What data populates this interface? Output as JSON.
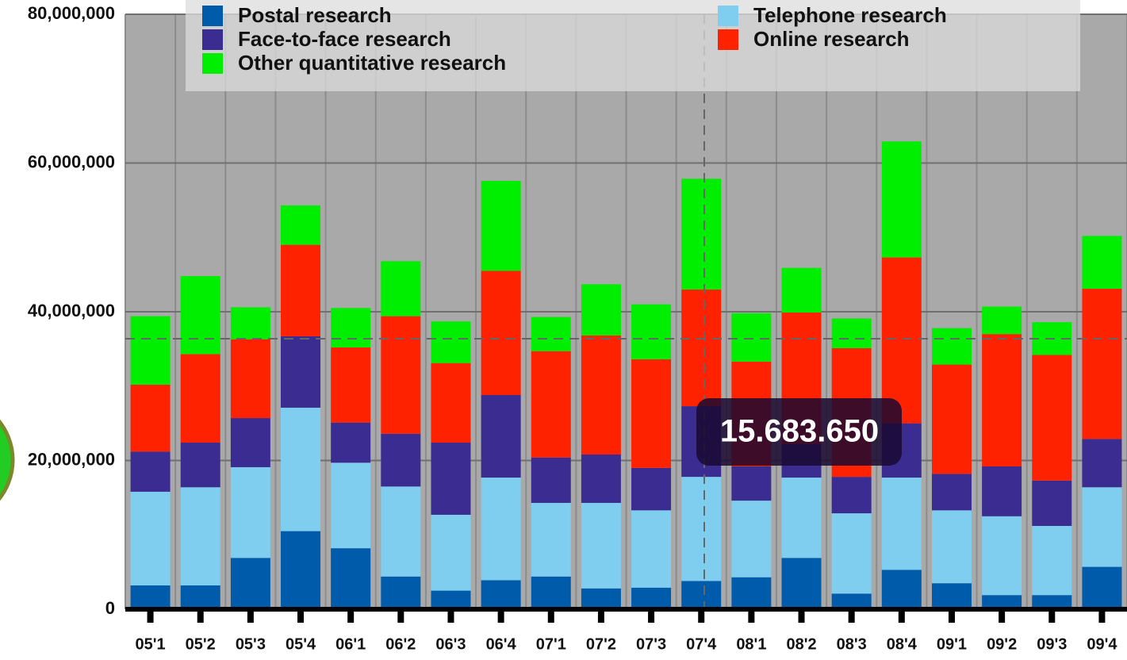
{
  "chart_data": {
    "type": "stacked_bar",
    "categories": [
      "05'1",
      "05'2",
      "05'3",
      "05'4",
      "06'1",
      "06'2",
      "06'3",
      "06'4",
      "07'1",
      "07'2",
      "07'3",
      "07'4",
      "08'1",
      "08'2",
      "08'3",
      "08'4",
      "09'1",
      "09'2",
      "09'3",
      "09'4"
    ],
    "series": [
      {
        "name": "Postal research",
        "color": "#005bab",
        "values": [
          3200000,
          3200000,
          6900000,
          10500000,
          8200000,
          4400000,
          2500000,
          3900000,
          4400000,
          2800000,
          2900000,
          3800000,
          4300000,
          6900000,
          2100000,
          5300000,
          3500000,
          1900000,
          1900000,
          5700000
        ]
      },
      {
        "name": "Telephone research",
        "color": "#7fcdef",
        "values": [
          12600000,
          13200000,
          12200000,
          16600000,
          11500000,
          12100000,
          10200000,
          13800000,
          9900000,
          11500000,
          10400000,
          14000000,
          10300000,
          10800000,
          10800000,
          12400000,
          9800000,
          10600000,
          9300000,
          10700000
        ]
      },
      {
        "name": "Face-to-face research",
        "color": "#3b2c91",
        "values": [
          5400000,
          6000000,
          6600000,
          9600000,
          5400000,
          7100000,
          9700000,
          11100000,
          6100000,
          6500000,
          5700000,
          9500000,
          4600000,
          4500000,
          4900000,
          7300000,
          4900000,
          6700000,
          6100000,
          6500000
        ]
      },
      {
        "name": "Online research",
        "color": "#ff2200",
        "values": [
          9000000,
          11900000,
          10600000,
          12300000,
          10100000,
          15800000,
          10700000,
          16700000,
          14300000,
          16000000,
          14600000,
          15683650,
          14100000,
          17700000,
          17300000,
          22300000,
          14700000,
          17800000,
          16900000,
          20200000
        ]
      },
      {
        "name": "Other quantitative research",
        "color": "#00ee00",
        "values": [
          9200000,
          10500000,
          4300000,
          5300000,
          5300000,
          7400000,
          5600000,
          12100000,
          4600000,
          6900000,
          7400000,
          14900000,
          6500000,
          6000000,
          4000000,
          15600000,
          4900000,
          3700000,
          4400000,
          7100000
        ]
      }
    ],
    "ylim": [
      0,
      80000000
    ],
    "yticks": [
      0,
      {
        "value": 20000000,
        "label": "20,000,000"
      },
      {
        "value": 40000000,
        "label": "40,000,000"
      },
      {
        "value": 60000000,
        "label": "60,000,000"
      },
      {
        "value": 80000000,
        "label": "80,000,000"
      }
    ],
    "grid": true,
    "legend": "top",
    "tooltip": "15.683.650"
  }
}
